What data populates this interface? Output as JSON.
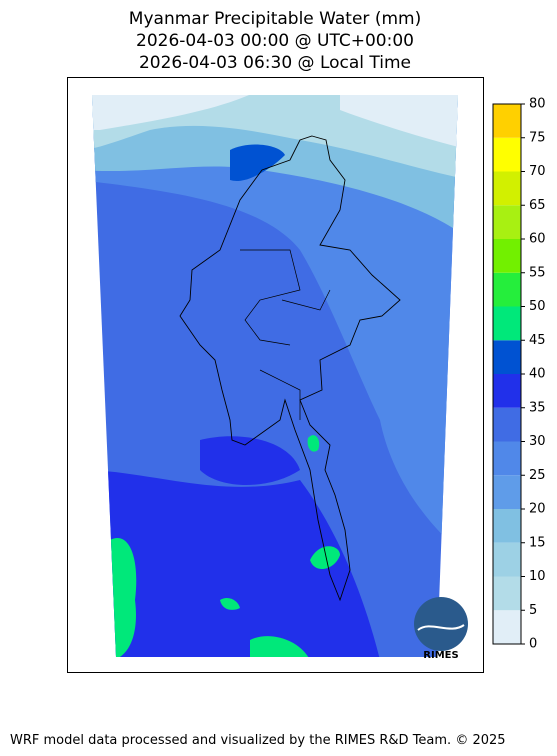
{
  "title_lines": [
    "Myanmar Precipitable Water (mm)",
    "2026-04-03 00:00 @ UTC+00:00",
    "2026-04-03 06:30 @ Local Time"
  ],
  "colorbar": {
    "ticks": [
      0,
      5,
      10,
      15,
      20,
      25,
      30,
      35,
      40,
      45,
      50,
      55,
      60,
      65,
      70,
      75,
      80
    ],
    "colors": [
      "#e1eef7",
      "#b3dce8",
      "#9dd1e5",
      "#80c0e2",
      "#5f9ce9",
      "#5088e9",
      "#406ce4",
      "#2130ea",
      "#0052d2",
      "#00e87a",
      "#25ee3c",
      "#72f000",
      "#a8f012",
      "#d2f000",
      "#ffff00",
      "#ffd000"
    ]
  },
  "logo": "RIMES",
  "footer": "WRF model data processed and visualized by the RIMES R&D Team. © 2025"
}
